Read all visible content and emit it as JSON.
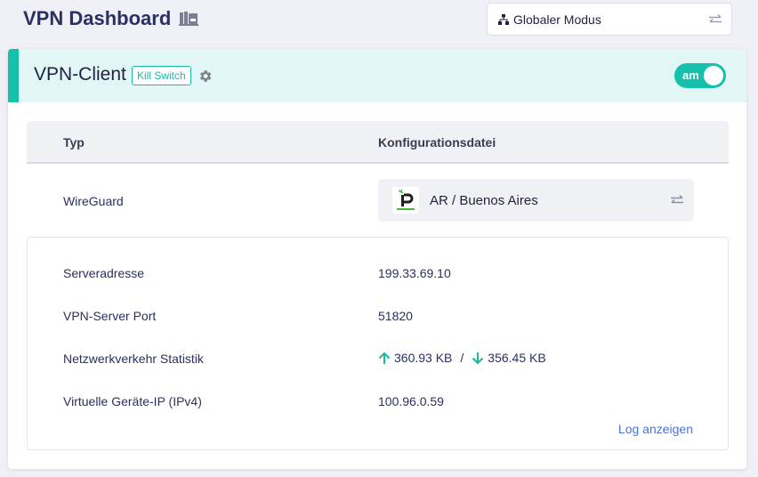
{
  "header": {
    "title": "VPN Dashboard",
    "mode_select": {
      "value": "Globaler Modus"
    }
  },
  "vpn_client": {
    "title": "VPN-Client",
    "kill_switch_badge": "Kill Switch",
    "toggle": {
      "label": "am",
      "state": "on"
    },
    "table": {
      "columns": [
        "Typ",
        "Konfigurationsdatei"
      ],
      "type": "WireGuard",
      "config_file": "AR / Buenos Aires"
    },
    "details": [
      {
        "label": "Serveradresse",
        "value": "199.33.69.10"
      },
      {
        "label": "VPN-Server Port",
        "value": "51820"
      },
      {
        "label": "Netzwerkverkehr Statistik",
        "upload": "360.93 KB",
        "separator": "/",
        "download": "356.45 KB"
      },
      {
        "label": "Virtuelle Geräte-IP (IPv4)",
        "value": "100.96.0.59"
      }
    ],
    "log_link": "Log anzeigen"
  },
  "colors": {
    "accent": "#16c1ac",
    "title": "#2b2f62",
    "link": "#4a74d8"
  }
}
